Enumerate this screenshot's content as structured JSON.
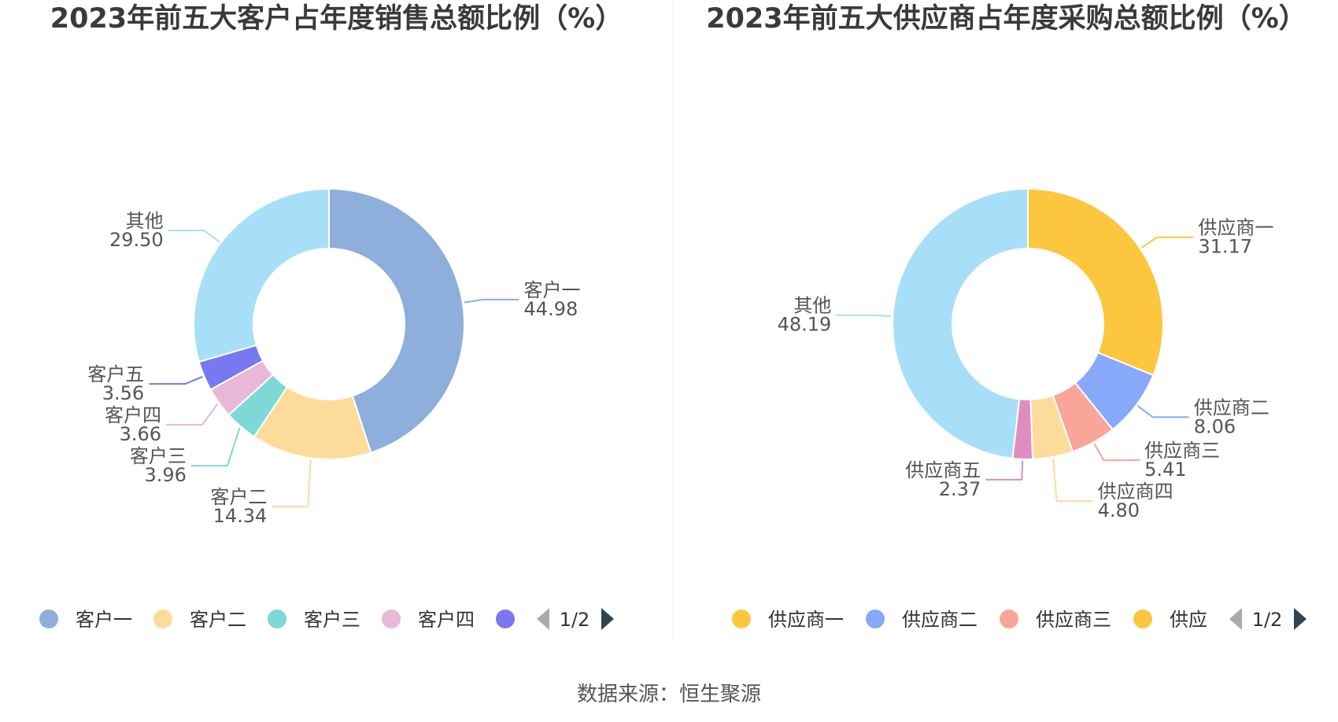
{
  "source_text": "数据来源：恒生聚源",
  "chart_data": [
    {
      "type": "pie",
      "title": "2023年前五大客户占年度销售总额比例（%）",
      "slices": [
        {
          "label": "客户一",
          "value": 44.98,
          "display": "44.98",
          "color": "#8EAEDB"
        },
        {
          "label": "客户二",
          "value": 14.34,
          "display": "14.34",
          "color": "#FDDB9A"
        },
        {
          "label": "客户三",
          "value": 3.96,
          "display": "3.96",
          "color": "#7FD8D6"
        },
        {
          "label": "客户四",
          "value": 3.66,
          "display": "3.66",
          "color": "#E8B8D8"
        },
        {
          "label": "客户五",
          "value": 3.56,
          "display": "3.56",
          "color": "#7878F2"
        },
        {
          "label": "其他",
          "value": 29.5,
          "display": "29.50",
          "color": "#A8DFF8"
        }
      ],
      "legend": {
        "visible_items": [
          "客户一",
          "客户二",
          "客户三",
          "客户四",
          ""
        ],
        "page": "1/2"
      }
    },
    {
      "type": "pie",
      "title": "2023年前五大供应商占年度采购总额比例（%）",
      "slices": [
        {
          "label": "供应商一",
          "value": 31.17,
          "display": "31.17",
          "color": "#FCC63F"
        },
        {
          "label": "供应商二",
          "value": 8.06,
          "display": "8.06",
          "color": "#88A8FC"
        },
        {
          "label": "供应商三",
          "value": 5.41,
          "display": "5.41",
          "color": "#F9A598"
        },
        {
          "label": "供应商四",
          "value": 4.8,
          "display": "4.80",
          "color": "#FDDB9A"
        },
        {
          "label": "供应商五",
          "value": 2.37,
          "display": "2.37",
          "color": "#DF8DC0"
        },
        {
          "label": "其他",
          "value": 48.19,
          "display": "48.19",
          "color": "#A8DFF8"
        }
      ],
      "legend": {
        "visible_items": [
          "供应商一",
          "供应商二",
          "供应商三",
          "供应"
        ],
        "page": "1/2"
      }
    }
  ]
}
